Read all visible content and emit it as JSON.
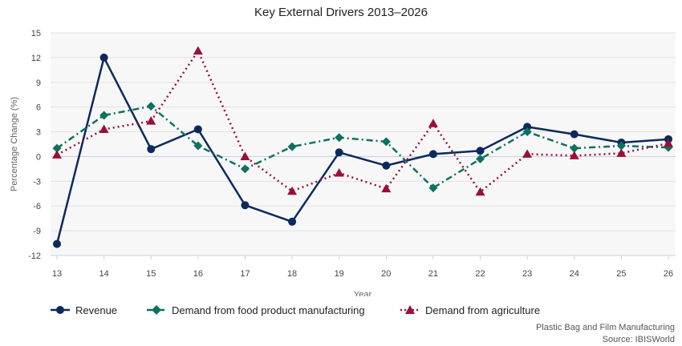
{
  "chart_data": {
    "type": "line",
    "title": "Key External Drivers 2013–2026",
    "xlabel": "Year",
    "ylabel": "Percentage Change (%)",
    "categories": [
      "13",
      "14",
      "15",
      "16",
      "17",
      "18",
      "19",
      "20",
      "21",
      "22",
      "23",
      "24",
      "25",
      "26"
    ],
    "ylim": [
      -12,
      15
    ],
    "yticks": [
      "15",
      "12",
      "9",
      "6",
      "3",
      "0",
      "-3",
      "-6",
      "-9",
      "-12"
    ],
    "grid": true,
    "legend_position": "bottom-left",
    "series": [
      {
        "name": "Revenue",
        "color": "#0b2a5b",
        "marker": "circle",
        "dash": "solid",
        "values": [
          -10.6,
          12.0,
          0.9,
          3.3,
          -5.9,
          -7.9,
          0.5,
          -1.1,
          0.3,
          0.7,
          3.6,
          2.7,
          1.7,
          2.1
        ]
      },
      {
        "name": "Demand from food product manufacturing",
        "color": "#0e7060",
        "marker": "diamond",
        "dash": "dashdot",
        "values": [
          1.0,
          5.0,
          6.1,
          1.3,
          -1.5,
          1.2,
          2.3,
          1.8,
          -3.8,
          -0.3,
          3.0,
          1.0,
          1.3,
          1.1
        ]
      },
      {
        "name": "Demand from agriculture",
        "color": "#9b0e3b",
        "marker": "triangle",
        "dash": "dotted",
        "values": [
          0.2,
          3.3,
          4.3,
          12.8,
          0.0,
          -4.2,
          -2.0,
          -3.9,
          4.0,
          -4.3,
          0.3,
          0.1,
          0.4,
          1.6
        ]
      }
    ]
  },
  "footer": {
    "line1": "Plastic Bag and Film Manufacturing",
    "line2": "Source: IBISWorld"
  }
}
